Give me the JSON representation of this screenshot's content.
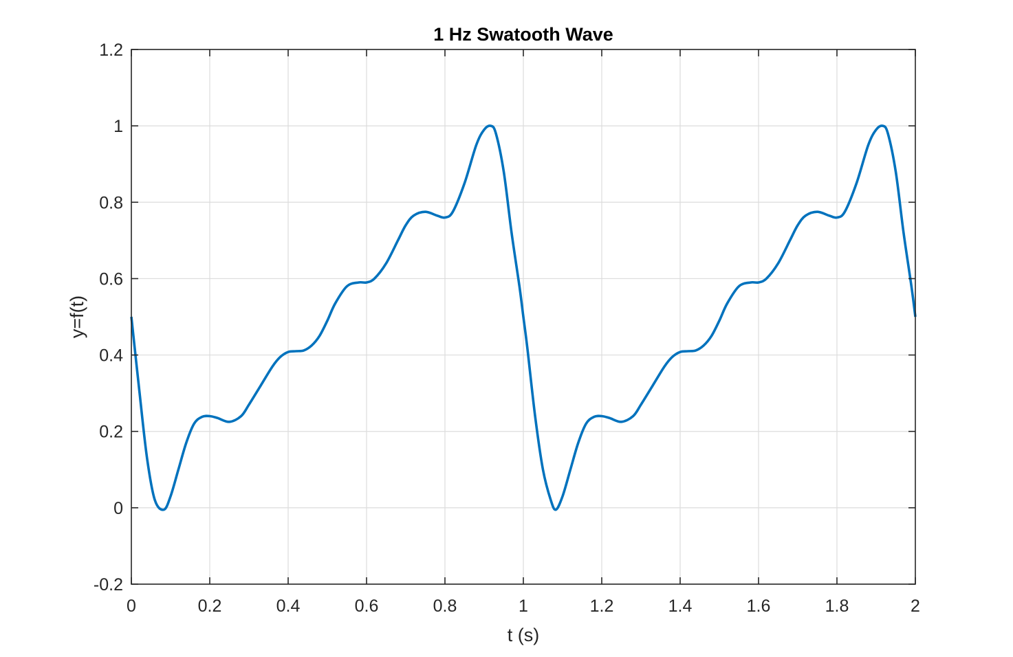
{
  "chart_data": {
    "type": "line",
    "title": "1 Hz Swatooth Wave",
    "xlabel": "t (s)",
    "ylabel": "y=f(t)",
    "xlim": [
      0,
      2
    ],
    "ylim": [
      -0.2,
      1.2
    ],
    "xticks": [
      0,
      0.2,
      0.4,
      0.6,
      0.8,
      1,
      1.2,
      1.4,
      1.6,
      1.8,
      2
    ],
    "xtick_labels": [
      "0",
      "0.2",
      "0.4",
      "0.6",
      "0.8",
      "1",
      "1.2",
      "1.4",
      "1.6",
      "1.8",
      "2"
    ],
    "yticks": [
      -0.2,
      0,
      0.2,
      0.4,
      0.6,
      0.8,
      1,
      1.2
    ],
    "ytick_labels": [
      "-0.2",
      "0",
      "0.2",
      "0.4",
      "0.6",
      "0.8",
      "1",
      "1.2"
    ],
    "grid": true,
    "legend": "none",
    "series": [
      {
        "color": "#0072BD",
        "x": [
          0,
          0.02,
          0.04,
          0.06,
          0.083,
          0.1,
          0.12,
          0.14,
          0.16,
          0.18,
          0.2,
          0.22,
          0.25,
          0.28,
          0.3,
          0.33,
          0.36,
          0.38,
          0.4,
          0.42,
          0.44,
          0.46,
          0.48,
          0.5,
          0.52,
          0.55,
          0.58,
          0.6,
          0.62,
          0.65,
          0.68,
          0.7,
          0.72,
          0.75,
          0.78,
          0.8,
          0.82,
          0.85,
          0.88,
          0.9,
          0.917,
          0.93,
          0.95,
          0.97,
          0.99,
          1.0,
          1.01,
          1.03,
          1.05,
          1.07,
          1.083,
          1.1,
          1.12,
          1.14,
          1.16,
          1.18,
          1.2,
          1.22,
          1.25,
          1.28,
          1.3,
          1.33,
          1.36,
          1.38,
          1.4,
          1.42,
          1.44,
          1.46,
          1.48,
          1.5,
          1.52,
          1.55,
          1.58,
          1.6,
          1.62,
          1.65,
          1.68,
          1.7,
          1.72,
          1.75,
          1.78,
          1.8,
          1.82,
          1.85,
          1.88,
          1.9,
          1.917,
          1.93,
          1.95,
          1.97,
          1.99,
          2.0
        ],
        "y": [
          0.5,
          0.31,
          0.13,
          0.02,
          -0.005,
          0.03,
          0.1,
          0.17,
          0.22,
          0.238,
          0.24,
          0.235,
          0.225,
          0.24,
          0.27,
          0.32,
          0.37,
          0.395,
          0.408,
          0.41,
          0.412,
          0.425,
          0.45,
          0.49,
          0.535,
          0.58,
          0.59,
          0.59,
          0.6,
          0.64,
          0.7,
          0.74,
          0.765,
          0.775,
          0.765,
          0.76,
          0.775,
          0.85,
          0.95,
          0.99,
          1.0,
          0.98,
          0.88,
          0.72,
          0.58,
          0.5,
          0.42,
          0.24,
          0.1,
          0.02,
          -0.005,
          0.03,
          0.1,
          0.17,
          0.22,
          0.238,
          0.24,
          0.235,
          0.225,
          0.24,
          0.27,
          0.32,
          0.37,
          0.395,
          0.408,
          0.41,
          0.412,
          0.425,
          0.45,
          0.49,
          0.535,
          0.58,
          0.59,
          0.59,
          0.6,
          0.64,
          0.7,
          0.74,
          0.765,
          0.775,
          0.765,
          0.76,
          0.775,
          0.85,
          0.95,
          0.99,
          1.0,
          0.98,
          0.88,
          0.72,
          0.58,
          0.5
        ]
      }
    ]
  }
}
